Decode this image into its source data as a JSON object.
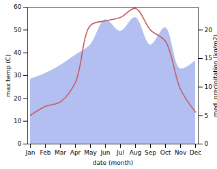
{
  "chart_data": {
    "type": "line",
    "xlabel": "date (month)",
    "ylabel": "max temp (C)",
    "y2label": "med. precipitation (kg/m2)",
    "categories": [
      "Jan",
      "Feb",
      "Mar",
      "Apr",
      "May",
      "Jun",
      "Jul",
      "Aug",
      "Sep",
      "Oct",
      "Nov",
      "Dec"
    ],
    "series": [
      {
        "type": "area",
        "axis": "y2",
        "color": "#b3bff0",
        "values": [
          11.4,
          12.4,
          13.8,
          15.6,
          17.4,
          21.8,
          19.8,
          22.2,
          17.4,
          20.4,
          13.2,
          14.6
        ]
      },
      {
        "type": "line",
        "color": "#c25a5f",
        "values": [
          12.6,
          16.5,
          18.5,
          27,
          52,
          54,
          55.5,
          59.5,
          50,
          45,
          24,
          14
        ]
      }
    ],
    "ylim": [
      0,
      60
    ],
    "yticks": [
      0,
      10,
      20,
      30,
      40,
      50,
      60
    ],
    "y2lim": [
      0,
      24
    ],
    "y2ticks": [
      0,
      5,
      10,
      15,
      20
    ],
    "grid": false
  }
}
